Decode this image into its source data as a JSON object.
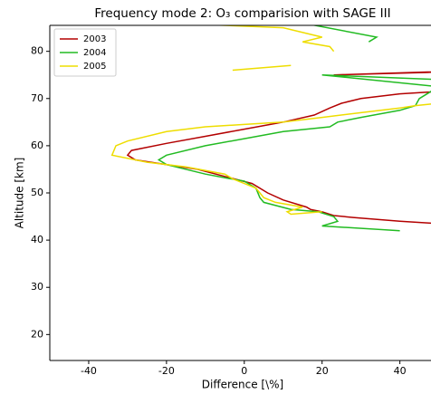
{
  "chart_data": {
    "type": "line",
    "title": "Frequency mode 2: O₃ comparision with SAGE III",
    "xlabel": "Difference [\\%]",
    "ylabel": "Altitude [km]",
    "xlim": [
      -50,
      48
    ],
    "ylim": [
      14.5,
      85.5
    ],
    "xticks": [
      -40,
      -20,
      0,
      20,
      40
    ],
    "yticks": [
      20,
      30,
      40,
      50,
      60,
      70,
      80
    ],
    "grid": false,
    "legend": "upper left",
    "series": [
      {
        "name": "2003",
        "color": "#b30000",
        "x": [
          50,
          40,
          28,
          23,
          20,
          17,
          16,
          10,
          6,
          2,
          -5,
          -12,
          -20,
          -28,
          -30,
          -29,
          -20,
          -10,
          0,
          10,
          18,
          22,
          25,
          30,
          40,
          50,
          55,
          55,
          23,
          50
        ],
        "y": [
          43.5,
          44,
          44.8,
          45.2,
          46,
          46.5,
          47,
          48.5,
          50,
          52,
          53.5,
          55,
          56,
          57,
          58,
          59,
          60.5,
          62,
          63.5,
          65,
          66.5,
          68,
          69,
          70,
          71,
          71.5,
          72,
          75.7,
          75,
          75.7
        ]
      },
      {
        "name": "2004",
        "color": "#22bb22",
        "x": [
          40,
          20,
          24,
          23,
          19,
          12,
          5,
          4,
          3,
          0,
          -5,
          -10,
          -20,
          -22,
          -20,
          -10,
          0,
          10,
          22,
          24,
          30,
          40,
          44,
          45,
          50,
          20,
          50,
          null,
          15,
          34,
          32
        ],
        "y": [
          42,
          43,
          44,
          45,
          46,
          46.5,
          48,
          49,
          51,
          52.5,
          53.2,
          54,
          56,
          57,
          58,
          60,
          61.5,
          63,
          64,
          65,
          66,
          67.5,
          68.5,
          70,
          72.5,
          75,
          74,
          null,
          86,
          83,
          82
        ]
      },
      {
        "name": "2005",
        "color": "#eedd00",
        "x": [
          20,
          12,
          11,
          15,
          8,
          5,
          3,
          0,
          -3,
          -5,
          -15,
          -25,
          -34,
          -33,
          -30,
          -20,
          -10,
          0,
          10,
          20,
          30,
          40,
          44,
          50,
          null,
          -3,
          12,
          null,
          -20,
          10,
          20,
          15,
          22,
          23
        ],
        "y": [
          46,
          45.5,
          46,
          47,
          48,
          49,
          51,
          52,
          53,
          54,
          55.5,
          56.5,
          58,
          60,
          61,
          63,
          64,
          64.5,
          65,
          66,
          67,
          68,
          68.5,
          69,
          null,
          76,
          77,
          null,
          86,
          85,
          83,
          82,
          81,
          80
        ]
      }
    ]
  }
}
